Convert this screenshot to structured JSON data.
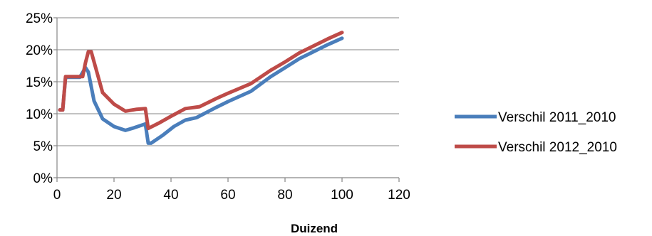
{
  "chart_data": {
    "type": "line",
    "xlabel": "Duizend",
    "ylabel": "",
    "xlim": [
      0,
      120
    ],
    "ylim": [
      0,
      0.25
    ],
    "x_ticks": [
      0,
      20,
      40,
      60,
      80,
      100,
      120
    ],
    "x_tick_labels": [
      "0",
      "20",
      "40",
      "60",
      "80",
      "100",
      "120"
    ],
    "y_ticks": [
      0,
      0.05,
      0.1,
      0.15,
      0.2,
      0.25
    ],
    "y_tick_labels": [
      "0%",
      "5%",
      "10%",
      "15%",
      "20%",
      "25%"
    ],
    "grid": "horizontal",
    "legend_position": "right",
    "series": [
      {
        "name": "Verschil 2011_2010",
        "color": "#4a7ebb",
        "points": [
          [
            1,
            0.106
          ],
          [
            2,
            0.106
          ],
          [
            3,
            0.157
          ],
          [
            4,
            0.157
          ],
          [
            8,
            0.157
          ],
          [
            10,
            0.172
          ],
          [
            11,
            0.165
          ],
          [
            13,
            0.12
          ],
          [
            16,
            0.092
          ],
          [
            20,
            0.08
          ],
          [
            24,
            0.074
          ],
          [
            27,
            0.078
          ],
          [
            31,
            0.084
          ],
          [
            32,
            0.054
          ],
          [
            33,
            0.054
          ],
          [
            37,
            0.066
          ],
          [
            41,
            0.08
          ],
          [
            45,
            0.09
          ],
          [
            49,
            0.094
          ],
          [
            55,
            0.108
          ],
          [
            60,
            0.119
          ],
          [
            68,
            0.135
          ],
          [
            75,
            0.158
          ],
          [
            80,
            0.172
          ],
          [
            85,
            0.186
          ],
          [
            90,
            0.197
          ],
          [
            95,
            0.208
          ],
          [
            100,
            0.218
          ]
        ]
      },
      {
        "name": "Verschil 2012_2010",
        "color": "#be4b48",
        "points": [
          [
            1,
            0.106
          ],
          [
            2,
            0.106
          ],
          [
            3,
            0.158
          ],
          [
            4,
            0.158
          ],
          [
            9,
            0.158
          ],
          [
            10,
            0.18
          ],
          [
            11,
            0.197
          ],
          [
            12,
            0.197
          ],
          [
            14,
            0.165
          ],
          [
            16,
            0.133
          ],
          [
            20,
            0.115
          ],
          [
            24,
            0.104
          ],
          [
            28,
            0.107
          ],
          [
            31,
            0.108
          ],
          [
            32,
            0.077
          ],
          [
            36,
            0.086
          ],
          [
            40,
            0.096
          ],
          [
            45,
            0.108
          ],
          [
            50,
            0.111
          ],
          [
            56,
            0.124
          ],
          [
            60,
            0.132
          ],
          [
            68,
            0.147
          ],
          [
            75,
            0.168
          ],
          [
            80,
            0.181
          ],
          [
            85,
            0.195
          ],
          [
            90,
            0.206
          ],
          [
            95,
            0.217
          ],
          [
            100,
            0.227
          ]
        ]
      }
    ]
  }
}
